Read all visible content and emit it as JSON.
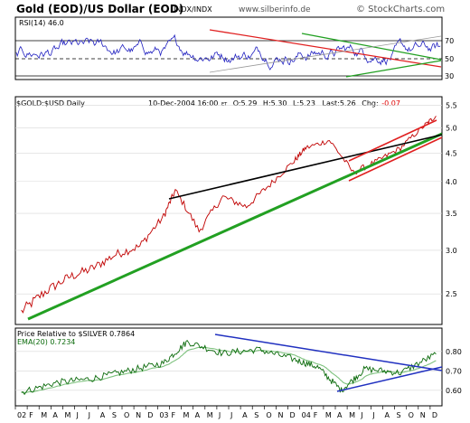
{
  "header": {
    "title": "Gold (EOD)/US Dollar (EOD)",
    "exchange": "INDX/INDX",
    "site": "www.silberinfo.de",
    "brand": "© StockCharts.com"
  },
  "colors": {
    "rsi_line": "#2020c0",
    "price_line": "#c00000",
    "ratio_line": "#0a6a0a",
    "ema_line": "#7fc27f",
    "trend_red": "#e02020",
    "trend_green": "#22a022",
    "trend_black": "#000000",
    "trend_blue": "#2030c0",
    "grid": "#d8d8d8",
    "chg_negative": "#e00000"
  },
  "chart_data": [
    {
      "type": "line",
      "panel": "RSI",
      "title": "RSI(14) 46.0",
      "y_ticks": [
        "70",
        "50",
        "30"
      ],
      "ylim": [
        0,
        100
      ],
      "reference_lines": [
        70,
        50,
        30
      ],
      "last_value": 46.0
    },
    {
      "type": "line",
      "panel": "price",
      "title": "$GOLD:$USD Daily",
      "yscale": "log",
      "info": {
        "date": "10-Dec-2004 16:00",
        "tz": "ET",
        "open": "O:5.29",
        "high": "H:5.30",
        "low": "L:5.23",
        "last": "Last:5.26",
        "chg_label": "Chg:",
        "chg_value": "-0.07"
      },
      "y_ticks": [
        "5.5",
        "5.0",
        "4.5",
        "4.0",
        "3.5",
        "3.0",
        "2.5"
      ],
      "ylim": [
        2.2,
        5.7
      ],
      "series_points": {
        "x": [
          "2002-01",
          "2002-03",
          "2002-05",
          "2002-07",
          "2002-09",
          "2002-11",
          "2003-01",
          "2003-02",
          "2003-04",
          "2003-06",
          "2003-08",
          "2003-10",
          "2003-12",
          "2004-01",
          "2004-03",
          "2004-05",
          "2004-07",
          "2004-09",
          "2004-11",
          "2004-12"
        ],
        "values": [
          2.32,
          2.52,
          2.68,
          2.78,
          2.95,
          3.05,
          3.45,
          3.85,
          3.25,
          3.75,
          3.6,
          3.95,
          4.35,
          4.6,
          4.75,
          4.15,
          4.35,
          4.6,
          5.05,
          5.26
        ]
      }
    },
    {
      "type": "line",
      "panel": "relative",
      "title": "Price Relative to $SILVER 0.7864",
      "series": [
        {
          "name": "Price Relative to $SILVER",
          "last_value": 0.7864
        },
        {
          "name": "EMA(20)",
          "last_value": 0.7234
        }
      ],
      "ema_label": "EMA(20) 0.7234",
      "y_ticks": [
        "0.80",
        "0.70",
        "0.60"
      ],
      "ylim": [
        0.52,
        0.92
      ],
      "series_points": {
        "x": [
          "2002-01",
          "2002-04",
          "2002-07",
          "2002-10",
          "2003-01",
          "2003-03",
          "2003-06",
          "2003-09",
          "2003-12",
          "2004-02",
          "2004-04",
          "2004-06",
          "2004-09",
          "2004-12"
        ],
        "values": [
          0.59,
          0.64,
          0.66,
          0.7,
          0.74,
          0.85,
          0.79,
          0.81,
          0.76,
          0.72,
          0.6,
          0.71,
          0.69,
          0.786
        ]
      }
    }
  ],
  "x_axis": {
    "labels": [
      "02",
      "F",
      "M",
      "A",
      "M",
      "J",
      "J",
      "A",
      "S",
      "O",
      "N",
      "D",
      "03",
      "F",
      "M",
      "A",
      "M",
      "J",
      "J",
      "A",
      "S",
      "O",
      "N",
      "D",
      "04",
      "F",
      "M",
      "A",
      "M",
      "J",
      "J",
      "A",
      "S",
      "O",
      "N",
      "D"
    ]
  }
}
